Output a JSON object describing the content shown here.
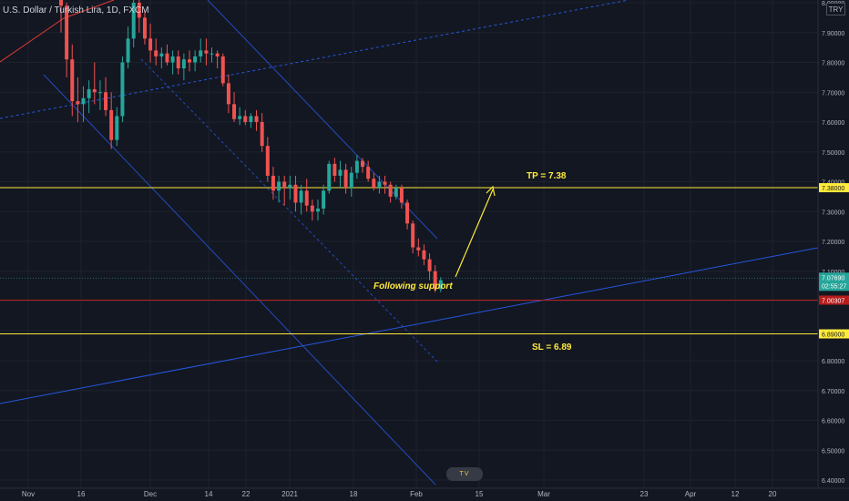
{
  "header": {
    "symbol_text": "U.S. Dollar / Turkish Lira, 1D, FXCM",
    "currency_label": "TRY"
  },
  "watermark": {
    "text": "TV"
  },
  "chart_data": {
    "type": "candlestick",
    "title": "U.S. Dollar / Turkish Lira, 1D, FXCM",
    "y_axis": {
      "ylim": [
        6.4,
        8.0
      ],
      "ticks": [
        6.4,
        6.5,
        6.6,
        6.7,
        6.8,
        6.9,
        7.0,
        7.1,
        7.2,
        7.3,
        7.4,
        7.5,
        7.6,
        7.7,
        7.8,
        7.9,
        8.0
      ],
      "tick_labels": [
        "6.40000",
        "6.50000",
        "6.60000",
        "6.70000",
        "6.80000",
        "6.90000",
        "7.00000",
        "7.10000",
        "7.20000",
        "7.30000",
        "7.40000",
        "7.50000",
        "7.60000",
        "7.70000",
        "7.80000",
        "7.90000",
        "8.00000"
      ],
      "position": "right"
    },
    "x_axis": {
      "tick_labels": [
        "Nov",
        "16",
        "Dec",
        "14",
        "22",
        "2021",
        "18",
        "Feb",
        "15",
        "Mar",
        "23",
        "Apr",
        "12",
        "20"
      ]
    },
    "grid": true,
    "colors": {
      "up": "#26a69a",
      "down": "#ef5350",
      "background": "#131722",
      "grid": "#1e222d"
    },
    "candles": [
      {
        "date": "Nov 06",
        "o": 8.1,
        "h": 8.2,
        "l": 7.9,
        "c": 7.99
      },
      {
        "date": "Nov 09",
        "o": 7.99,
        "h": 8.0,
        "l": 7.75,
        "c": 7.81
      },
      {
        "date": "Nov 10",
        "o": 7.81,
        "h": 7.86,
        "l": 7.62,
        "c": 7.67
      },
      {
        "date": "Nov 11",
        "o": 7.67,
        "h": 7.75,
        "l": 7.6,
        "c": 7.66
      },
      {
        "date": "Nov 12",
        "o": 7.66,
        "h": 7.72,
        "l": 7.6,
        "c": 7.68
      },
      {
        "date": "Nov 13",
        "o": 7.68,
        "h": 7.74,
        "l": 7.63,
        "c": 7.71
      },
      {
        "date": "Nov 16",
        "o": 7.71,
        "h": 7.8,
        "l": 7.66,
        "c": 7.7
      },
      {
        "date": "Nov 17",
        "o": 7.7,
        "h": 7.74,
        "l": 7.64,
        "c": 7.7
      },
      {
        "date": "Nov 18",
        "o": 7.7,
        "h": 7.75,
        "l": 7.62,
        "c": 7.64
      },
      {
        "date": "Nov 19",
        "o": 7.64,
        "h": 7.7,
        "l": 7.51,
        "c": 7.54
      },
      {
        "date": "Nov 20",
        "o": 7.54,
        "h": 7.65,
        "l": 7.52,
        "c": 7.62
      },
      {
        "date": "Nov 23",
        "o": 7.62,
        "h": 7.82,
        "l": 7.6,
        "c": 7.8
      },
      {
        "date": "Nov 24",
        "o": 7.8,
        "h": 7.92,
        "l": 7.78,
        "c": 7.88
      },
      {
        "date": "Nov 25",
        "o": 7.88,
        "h": 8.02,
        "l": 7.85,
        "c": 8.0
      },
      {
        "date": "Nov 26",
        "o": 8.0,
        "h": 8.05,
        "l": 7.9,
        "c": 7.95
      },
      {
        "date": "Nov 27",
        "o": 7.95,
        "h": 7.97,
        "l": 7.86,
        "c": 7.88
      },
      {
        "date": "Nov 30",
        "o": 7.88,
        "h": 7.93,
        "l": 7.8,
        "c": 7.84
      },
      {
        "date": "Dec 01",
        "o": 7.84,
        "h": 7.88,
        "l": 7.79,
        "c": 7.82
      },
      {
        "date": "Dec 02",
        "o": 7.82,
        "h": 7.85,
        "l": 7.78,
        "c": 7.83
      },
      {
        "date": "Dec 03",
        "o": 7.83,
        "h": 7.86,
        "l": 7.79,
        "c": 7.8
      },
      {
        "date": "Dec 04",
        "o": 7.8,
        "h": 7.84,
        "l": 7.76,
        "c": 7.82
      },
      {
        "date": "Dec 07",
        "o": 7.82,
        "h": 7.84,
        "l": 7.76,
        "c": 7.78
      },
      {
        "date": "Dec 08",
        "o": 7.78,
        "h": 7.83,
        "l": 7.74,
        "c": 7.81
      },
      {
        "date": "Dec 09",
        "o": 7.81,
        "h": 7.84,
        "l": 7.77,
        "c": 7.8
      },
      {
        "date": "Dec 10",
        "o": 7.8,
        "h": 7.84,
        "l": 7.77,
        "c": 7.82
      },
      {
        "date": "Dec 11",
        "o": 7.82,
        "h": 7.88,
        "l": 7.8,
        "c": 7.84
      },
      {
        "date": "Dec 14",
        "o": 7.84,
        "h": 7.88,
        "l": 7.79,
        "c": 7.83
      },
      {
        "date": "Dec 15",
        "o": 7.83,
        "h": 7.85,
        "l": 7.8,
        "c": 7.83
      },
      {
        "date": "Dec 16",
        "o": 7.83,
        "h": 7.84,
        "l": 7.78,
        "c": 7.82
      },
      {
        "date": "Dec 17",
        "o": 7.82,
        "h": 7.83,
        "l": 7.72,
        "c": 7.73
      },
      {
        "date": "Dec 18",
        "o": 7.73,
        "h": 7.76,
        "l": 7.63,
        "c": 7.66
      },
      {
        "date": "Dec 21",
        "o": 7.66,
        "h": 7.7,
        "l": 7.6,
        "c": 7.61
      },
      {
        "date": "Dec 22",
        "o": 7.61,
        "h": 7.65,
        "l": 7.59,
        "c": 7.62
      },
      {
        "date": "Dec 23",
        "o": 7.62,
        "h": 7.64,
        "l": 7.59,
        "c": 7.6
      },
      {
        "date": "Dec 24",
        "o": 7.6,
        "h": 7.63,
        "l": 7.58,
        "c": 7.62
      },
      {
        "date": "Dec 25",
        "o": 7.62,
        "h": 7.64,
        "l": 7.57,
        "c": 7.6
      },
      {
        "date": "Dec 28",
        "o": 7.6,
        "h": 7.63,
        "l": 7.5,
        "c": 7.52
      },
      {
        "date": "Dec 29",
        "o": 7.52,
        "h": 7.55,
        "l": 7.4,
        "c": 7.42
      },
      {
        "date": "Dec 30",
        "o": 7.42,
        "h": 7.45,
        "l": 7.34,
        "c": 7.37
      },
      {
        "date": "Dec 31",
        "o": 7.37,
        "h": 7.42,
        "l": 7.33,
        "c": 7.4
      },
      {
        "date": "Jan 01",
        "o": 7.4,
        "h": 7.42,
        "l": 7.32,
        "c": 7.38
      },
      {
        "date": "Jan 04",
        "o": 7.38,
        "h": 7.42,
        "l": 7.34,
        "c": 7.39
      },
      {
        "date": "Jan 05",
        "o": 7.39,
        "h": 7.42,
        "l": 7.3,
        "c": 7.33
      },
      {
        "date": "Jan 06",
        "o": 7.33,
        "h": 7.39,
        "l": 7.29,
        "c": 7.37
      },
      {
        "date": "Jan 07",
        "o": 7.37,
        "h": 7.41,
        "l": 7.3,
        "c": 7.32
      },
      {
        "date": "Jan 08",
        "o": 7.32,
        "h": 7.34,
        "l": 7.27,
        "c": 7.3
      },
      {
        "date": "Jan 11",
        "o": 7.3,
        "h": 7.34,
        "l": 7.27,
        "c": 7.31
      },
      {
        "date": "Jan 12",
        "o": 7.31,
        "h": 7.39,
        "l": 7.29,
        "c": 7.37
      },
      {
        "date": "Jan 13",
        "o": 7.37,
        "h": 7.47,
        "l": 7.36,
        "c": 7.46
      },
      {
        "date": "Jan 14",
        "o": 7.46,
        "h": 7.48,
        "l": 7.4,
        "c": 7.42
      },
      {
        "date": "Jan 15",
        "o": 7.42,
        "h": 7.47,
        "l": 7.38,
        "c": 7.44
      },
      {
        "date": "Jan 18",
        "o": 7.44,
        "h": 7.46,
        "l": 7.36,
        "c": 7.38
      },
      {
        "date": "Jan 19",
        "o": 7.38,
        "h": 7.45,
        "l": 7.35,
        "c": 7.43
      },
      {
        "date": "Jan 20",
        "o": 7.43,
        "h": 7.49,
        "l": 7.41,
        "c": 7.47
      },
      {
        "date": "Jan 21",
        "o": 7.47,
        "h": 7.48,
        "l": 7.43,
        "c": 7.45
      },
      {
        "date": "Jan 22",
        "o": 7.45,
        "h": 7.47,
        "l": 7.4,
        "c": 7.41
      },
      {
        "date": "Jan 25",
        "o": 7.41,
        "h": 7.43,
        "l": 7.37,
        "c": 7.38
      },
      {
        "date": "Jan 26",
        "o": 7.38,
        "h": 7.42,
        "l": 7.36,
        "c": 7.4
      },
      {
        "date": "Jan 27",
        "o": 7.4,
        "h": 7.42,
        "l": 7.36,
        "c": 7.39
      },
      {
        "date": "Jan 28",
        "o": 7.39,
        "h": 7.4,
        "l": 7.33,
        "c": 7.35
      },
      {
        "date": "Jan 29",
        "o": 7.35,
        "h": 7.39,
        "l": 7.34,
        "c": 7.38
      },
      {
        "date": "Feb 01",
        "o": 7.38,
        "h": 7.39,
        "l": 7.31,
        "c": 7.33
      },
      {
        "date": "Feb 02",
        "o": 7.33,
        "h": 7.34,
        "l": 7.24,
        "c": 7.26
      },
      {
        "date": "Feb 03",
        "o": 7.26,
        "h": 7.27,
        "l": 7.16,
        "c": 7.18
      },
      {
        "date": "Feb 04",
        "o": 7.18,
        "h": 7.21,
        "l": 7.15,
        "c": 7.17
      },
      {
        "date": "Feb 05",
        "o": 7.17,
        "h": 7.19,
        "l": 7.12,
        "c": 7.14
      },
      {
        "date": "Feb 08",
        "o": 7.14,
        "h": 7.16,
        "l": 7.07,
        "c": 7.1
      },
      {
        "date": "Feb 09",
        "o": 7.1,
        "h": 7.12,
        "l": 7.03,
        "c": 7.04
      },
      {
        "date": "Feb 10",
        "o": 7.04,
        "h": 7.08,
        "l": 7.03,
        "c": 7.07
      }
    ],
    "horizontal_levels": [
      {
        "value": 7.38,
        "color": "#ffeb3b",
        "axis_label": "7.38000"
      },
      {
        "value": 7.00307,
        "color": "#b71c1c",
        "axis_label": "7.00307"
      },
      {
        "value": 6.89,
        "color": "#ffeb3b",
        "axis_label": "6.89000"
      }
    ],
    "current_price": {
      "value": 7.0769,
      "axis_label": "7.07690",
      "countdown": "02:55:27",
      "color": "#26a69a"
    },
    "annotations": [
      {
        "text": "TP = 7.38",
        "color": "#ffeb3b"
      },
      {
        "text": "SL = 6.89",
        "color": "#ffeb3b"
      },
      {
        "text": "Following support",
        "color": "#ffeb3b",
        "style": "italic"
      }
    ],
    "trendlines": [
      {
        "color": "#2962ff",
        "style": "solid"
      },
      {
        "color": "#2962ff",
        "style": "dashed"
      },
      {
        "color": "#e53935",
        "style": "solid"
      }
    ]
  }
}
